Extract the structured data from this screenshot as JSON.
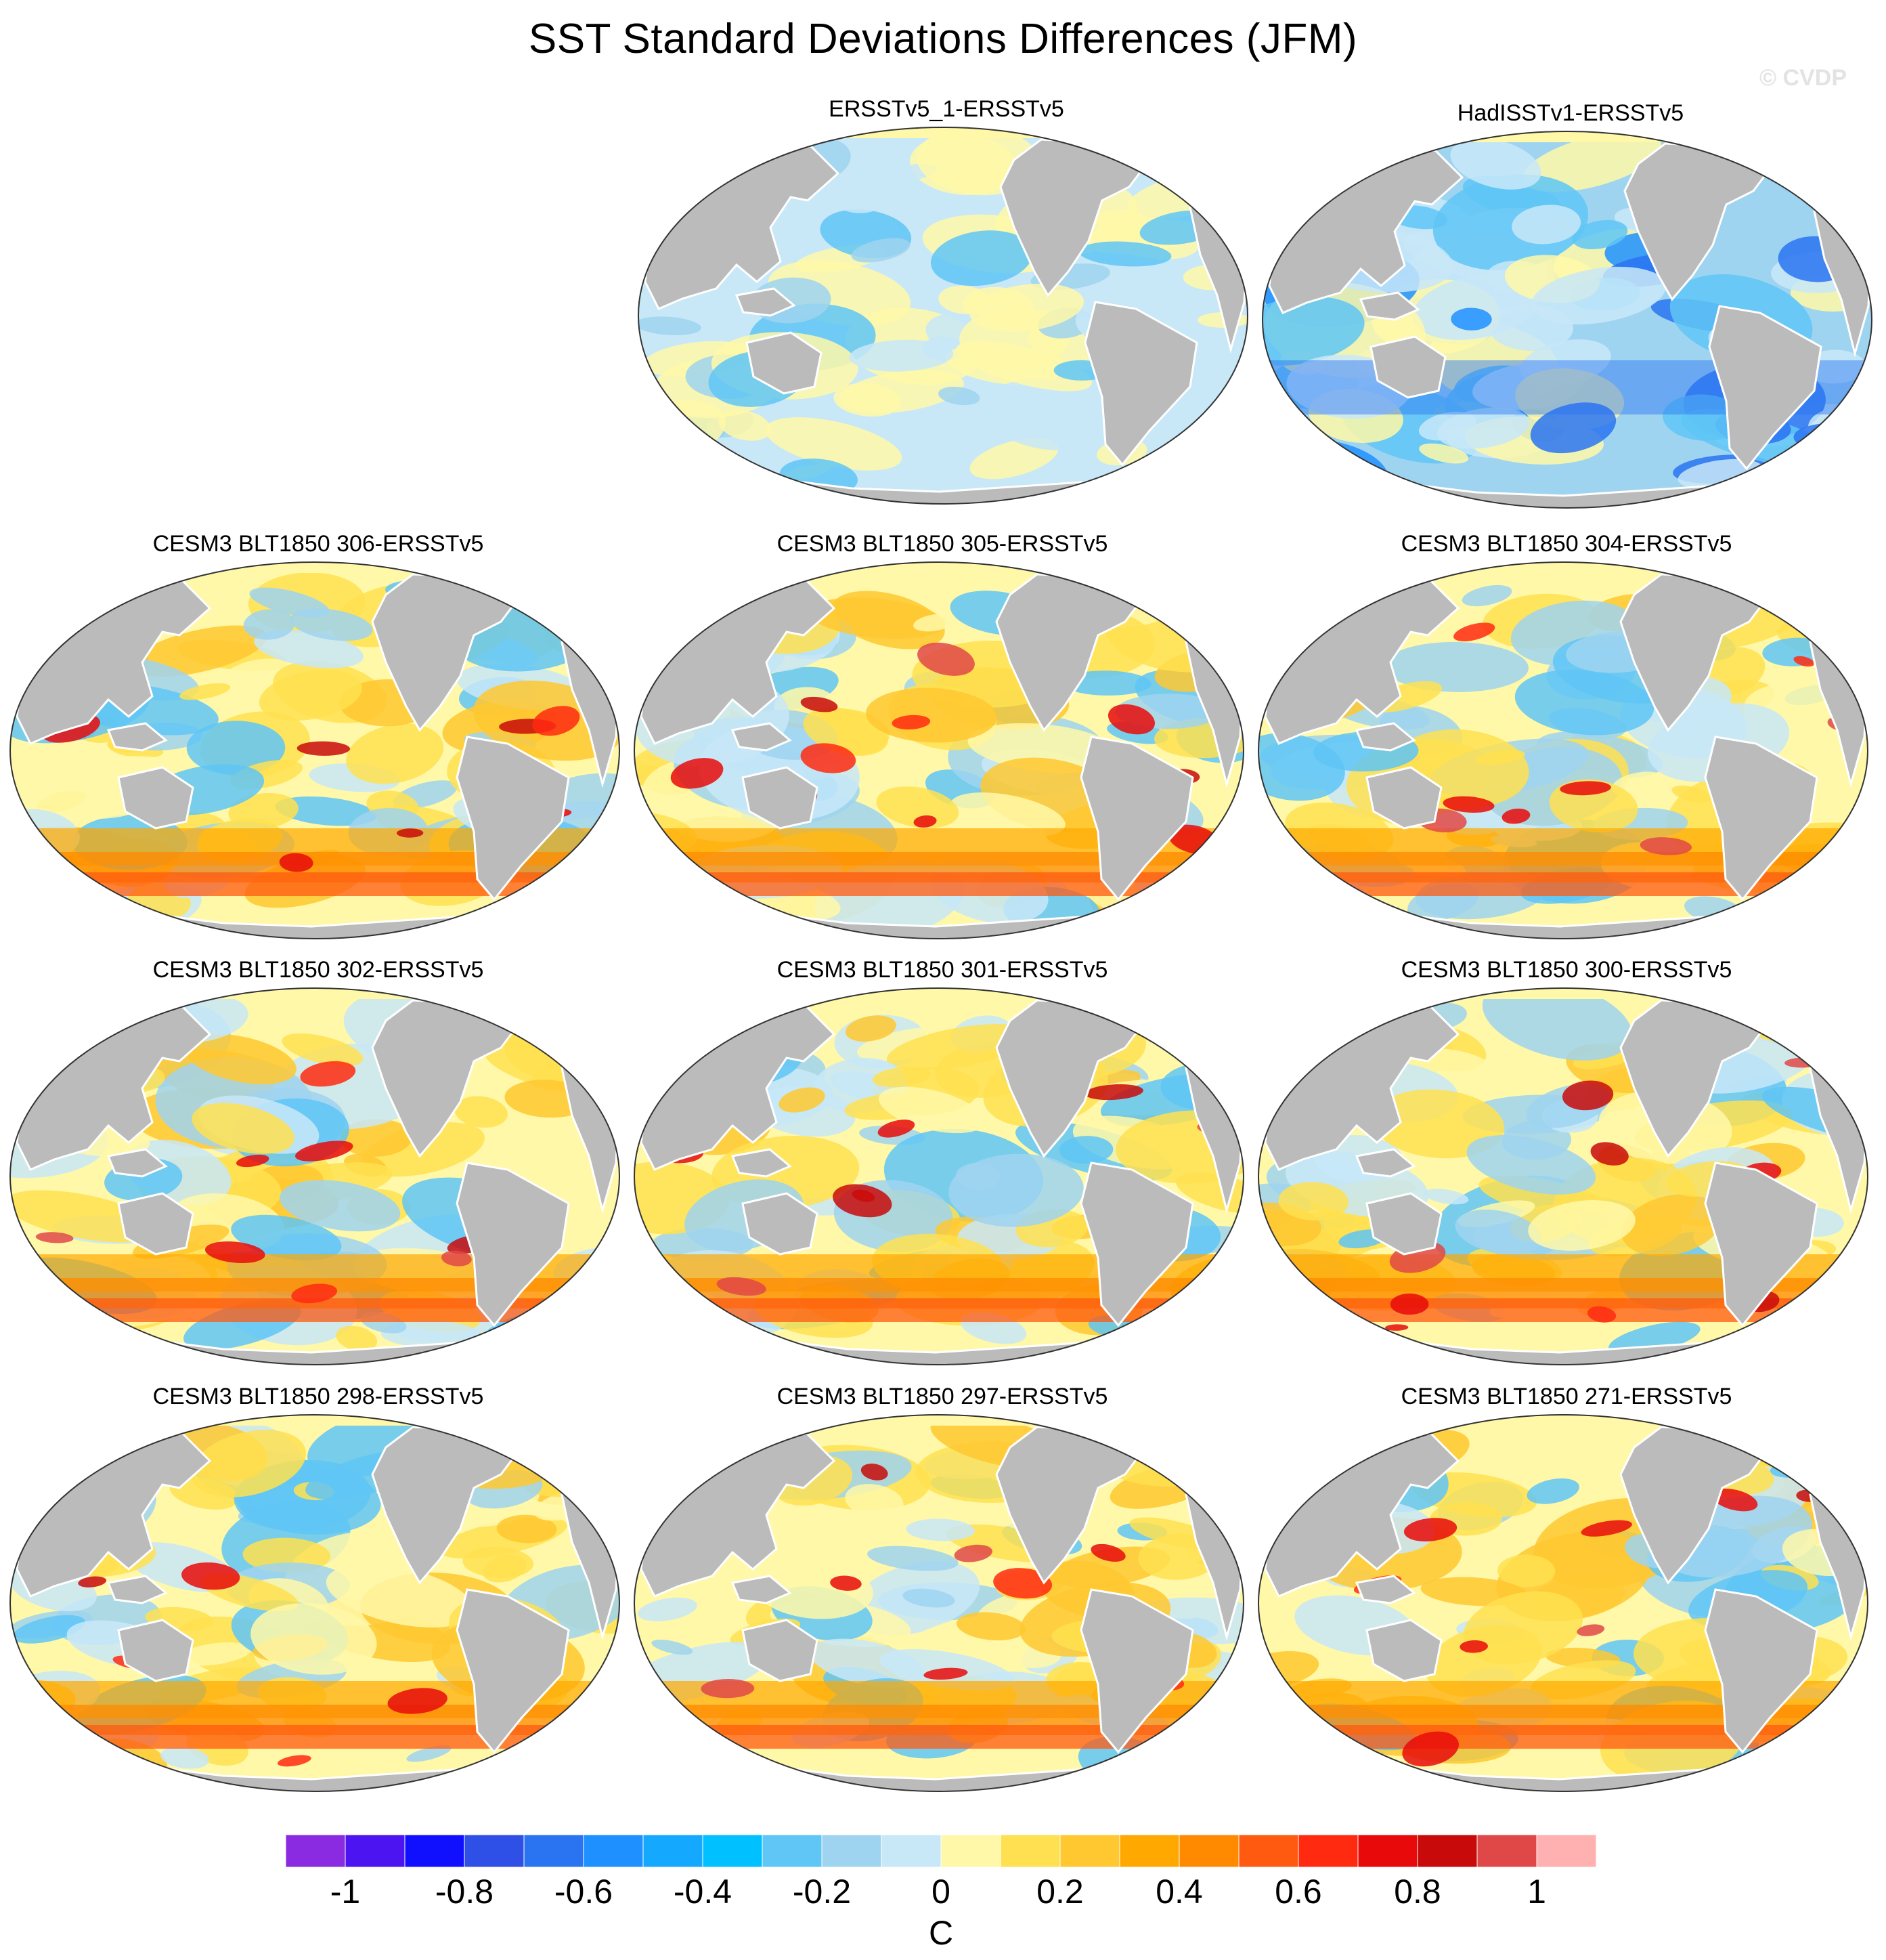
{
  "title": "SST Standard Deviations Differences (JFM)",
  "watermark": "© CVDP",
  "panels": [
    {
      "label": "ERSSTv5_1-ERSSTv5",
      "pattern": "obs1"
    },
    {
      "label": "HadISSTv1-ERSSTv5",
      "pattern": "obs2"
    },
    {
      "label": "CESM3 BLT1850 306-ERSSTv5",
      "pattern": "model"
    },
    {
      "label": "CESM3 BLT1850 305-ERSSTv5",
      "pattern": "model"
    },
    {
      "label": "CESM3 BLT1850 304-ERSSTv5",
      "pattern": "model"
    },
    {
      "label": "CESM3 BLT1850 302-ERSSTv5",
      "pattern": "model"
    },
    {
      "label": "CESM3 BLT1850 301-ERSSTv5",
      "pattern": "model"
    },
    {
      "label": "CESM3 BLT1850 300-ERSSTv5",
      "pattern": "model"
    },
    {
      "label": "CESM3 BLT1850 298-ERSSTv5",
      "pattern": "model"
    },
    {
      "label": "CESM3 BLT1850 297-ERSSTv5",
      "pattern": "model"
    },
    {
      "label": "CESM3 BLT1850 271-ERSSTv5",
      "pattern": "model"
    }
  ],
  "colorbar": {
    "unit": "C",
    "tick_labels": [
      "-1",
      "-0.8",
      "-0.6",
      "-0.4",
      "-0.2",
      "0",
      "0.2",
      "0.4",
      "0.6",
      "0.8",
      "1"
    ],
    "colors": [
      "#8a2be2",
      "#4b14f0",
      "#1010ff",
      "#2e50e6",
      "#2a74f2",
      "#1e90ff",
      "#14a8ff",
      "#00c0ff",
      "#5fc6f6",
      "#9fd4f0",
      "#c8e8f8",
      "#fff8a8",
      "#ffe050",
      "#ffc830",
      "#ffa800",
      "#ff8a00",
      "#ff5a10",
      "#ff2a10",
      "#e80a0a",
      "#c80a0a",
      "#e04848",
      "#ffb0b0"
    ]
  },
  "map_colors": {
    "land": "#bbbbbb",
    "ocean_base": "#fff8a8"
  }
}
